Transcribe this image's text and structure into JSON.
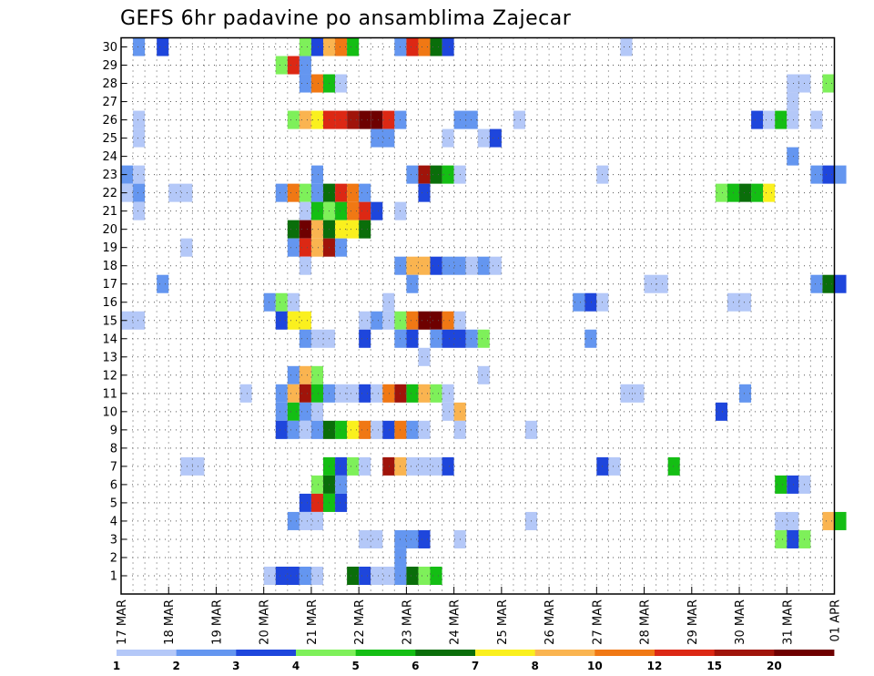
{
  "chart_data": {
    "type": "heatmap",
    "title": "GEFS 6hr padavine po ansamblima Zajecar",
    "y_categories": [
      "1",
      "2",
      "3",
      "4",
      "5",
      "6",
      "7",
      "8",
      "9",
      "10",
      "11",
      "12",
      "13",
      "14",
      "15",
      "16",
      "17",
      "18",
      "19",
      "20",
      "21",
      "22",
      "23",
      "24",
      "25",
      "26",
      "27",
      "28",
      "29",
      "30"
    ],
    "y_range": [
      0,
      30
    ],
    "x_tick_labels": [
      "17 MAR",
      "18 MAR",
      "19 MAR",
      "20 MAR",
      "21 MAR",
      "22 MAR",
      "23 MAR",
      "24 MAR",
      "25 MAR",
      "26 MAR",
      "27 MAR",
      "28 MAR",
      "29 MAR",
      "30 MAR",
      "31 MAR",
      "01 APR"
    ],
    "x_steps_per_day": 4,
    "x_step_count": 60,
    "grid": true,
    "colorbar": {
      "tick_labels": [
        "1",
        "2",
        "3",
        "4",
        "5",
        "6",
        "7",
        "8",
        "10",
        "12",
        "15",
        "20"
      ],
      "colors": [
        "#b4c8f8",
        "#6496f0",
        "#1e46dc",
        "#7ef05a",
        "#14be14",
        "#0a6e0a",
        "#faf01e",
        "#fab450",
        "#f07814",
        "#dc2814",
        "#a0140a",
        "#6e0000"
      ]
    },
    "cells": [
      [
        30,
        1,
        2,
        1
      ],
      [
        30,
        3,
        3,
        1
      ],
      [
        30,
        15,
        4,
        1
      ],
      [
        30,
        16,
        3,
        1
      ],
      [
        30,
        17,
        8,
        1
      ],
      [
        30,
        18,
        9,
        1
      ],
      [
        30,
        19,
        5,
        1
      ],
      [
        30,
        23,
        2,
        1
      ],
      [
        30,
        24,
        10,
        1
      ],
      [
        30,
        25,
        9,
        1
      ],
      [
        30,
        26,
        6,
        1
      ],
      [
        30,
        27,
        3,
        1
      ],
      [
        30,
        42,
        1,
        1
      ],
      [
        29,
        13,
        4,
        1
      ],
      [
        29,
        14,
        10,
        1
      ],
      [
        29,
        15,
        2,
        1
      ],
      [
        28,
        15,
        2,
        1
      ],
      [
        28,
        16,
        9,
        1
      ],
      [
        28,
        17,
        5,
        1
      ],
      [
        28,
        18,
        1,
        1
      ],
      [
        28,
        56,
        1,
        2
      ],
      [
        28,
        59,
        4,
        1
      ],
      [
        27,
        56,
        1,
        1
      ],
      [
        26,
        1,
        1,
        1
      ],
      [
        26,
        14,
        4,
        1
      ],
      [
        26,
        15,
        8,
        1
      ],
      [
        26,
        16,
        7,
        1
      ],
      [
        26,
        17,
        10,
        1
      ],
      [
        26,
        18,
        10,
        1
      ],
      [
        26,
        19,
        11,
        1
      ],
      [
        26,
        20,
        12,
        1
      ],
      [
        26,
        21,
        12,
        1
      ],
      [
        26,
        22,
        10,
        1
      ],
      [
        26,
        23,
        2,
        1
      ],
      [
        26,
        28,
        2,
        2
      ],
      [
        26,
        33,
        1,
        1
      ],
      [
        26,
        53,
        3,
        1
      ],
      [
        26,
        54,
        1,
        1
      ],
      [
        26,
        55,
        5,
        1
      ],
      [
        26,
        56,
        1,
        1
      ],
      [
        26,
        58,
        1,
        1
      ],
      [
        25,
        1,
        1,
        1
      ],
      [
        25,
        21,
        2,
        2
      ],
      [
        25,
        27,
        1,
        1
      ],
      [
        25,
        30,
        1,
        1
      ],
      [
        25,
        31,
        3,
        1
      ],
      [
        24,
        56,
        2,
        1
      ],
      [
        23,
        0,
        2,
        1
      ],
      [
        23,
        1,
        1,
        1
      ],
      [
        23,
        16,
        2,
        1
      ],
      [
        23,
        24,
        2,
        1
      ],
      [
        23,
        25,
        11,
        1
      ],
      [
        23,
        26,
        6,
        1
      ],
      [
        23,
        27,
        5,
        1
      ],
      [
        23,
        28,
        1,
        1
      ],
      [
        23,
        40,
        1,
        1
      ],
      [
        23,
        58,
        2,
        1
      ],
      [
        23,
        59,
        3,
        1
      ],
      [
        23,
        60,
        2,
        1
      ],
      [
        22,
        0,
        1,
        1
      ],
      [
        22,
        1,
        2,
        1
      ],
      [
        22,
        4,
        1,
        2
      ],
      [
        22,
        13,
        2,
        1
      ],
      [
        22,
        14,
        9,
        1
      ],
      [
        22,
        15,
        4,
        1
      ],
      [
        22,
        16,
        2,
        1
      ],
      [
        22,
        17,
        6,
        1
      ],
      [
        22,
        18,
        10,
        1
      ],
      [
        22,
        19,
        9,
        1
      ],
      [
        22,
        20,
        2,
        1
      ],
      [
        22,
        25,
        3,
        1
      ],
      [
        22,
        50,
        4,
        1
      ],
      [
        22,
        51,
        5,
        1
      ],
      [
        22,
        52,
        6,
        1
      ],
      [
        22,
        53,
        5,
        1
      ],
      [
        22,
        54,
        7,
        1
      ],
      [
        21,
        1,
        1,
        1
      ],
      [
        21,
        15,
        1,
        1
      ],
      [
        21,
        16,
        5,
        1
      ],
      [
        21,
        17,
        4,
        1
      ],
      [
        21,
        18,
        5,
        1
      ],
      [
        21,
        19,
        9,
        1
      ],
      [
        21,
        20,
        10,
        1
      ],
      [
        21,
        21,
        3,
        1
      ],
      [
        21,
        23,
        1,
        1
      ],
      [
        20,
        14,
        6,
        1
      ],
      [
        20,
        15,
        12,
        1
      ],
      [
        20,
        16,
        8,
        1
      ],
      [
        20,
        17,
        6,
        1
      ],
      [
        20,
        18,
        7,
        2
      ],
      [
        20,
        20,
        6,
        1
      ],
      [
        19,
        5,
        1,
        1
      ],
      [
        19,
        14,
        2,
        1
      ],
      [
        19,
        15,
        10,
        1
      ],
      [
        19,
        16,
        8,
        1
      ],
      [
        19,
        17,
        11,
        1
      ],
      [
        19,
        18,
        2,
        1
      ],
      [
        18,
        15,
        1,
        1
      ],
      [
        18,
        23,
        2,
        1
      ],
      [
        18,
        24,
        8,
        2
      ],
      [
        18,
        26,
        3,
        1
      ],
      [
        18,
        27,
        2,
        2
      ],
      [
        18,
        29,
        1,
        1
      ],
      [
        18,
        30,
        2,
        1
      ],
      [
        18,
        31,
        1,
        1
      ],
      [
        17,
        3,
        2,
        1
      ],
      [
        17,
        24,
        2,
        1
      ],
      [
        17,
        44,
        1,
        2
      ],
      [
        17,
        58,
        2,
        1
      ],
      [
        17,
        59,
        6,
        1
      ],
      [
        17,
        60,
        3,
        1
      ],
      [
        16,
        12,
        2,
        1
      ],
      [
        16,
        13,
        4,
        1
      ],
      [
        16,
        14,
        1,
        1
      ],
      [
        16,
        22,
        1,
        1
      ],
      [
        16,
        38,
        2,
        1
      ],
      [
        16,
        39,
        3,
        1
      ],
      [
        16,
        40,
        1,
        1
      ],
      [
        16,
        51,
        1,
        2
      ],
      [
        15,
        0,
        1,
        2
      ],
      [
        15,
        13,
        3,
        1
      ],
      [
        15,
        14,
        7,
        2
      ],
      [
        15,
        20,
        1,
        1
      ],
      [
        15,
        21,
        2,
        1
      ],
      [
        15,
        22,
        1,
        1
      ],
      [
        15,
        23,
        4,
        1
      ],
      [
        15,
        24,
        9,
        1
      ],
      [
        15,
        25,
        12,
        1
      ],
      [
        15,
        26,
        12,
        1
      ],
      [
        15,
        27,
        9,
        1
      ],
      [
        15,
        28,
        1,
        1
      ],
      [
        14,
        15,
        2,
        1
      ],
      [
        14,
        16,
        1,
        2
      ],
      [
        14,
        20,
        3,
        1
      ],
      [
        14,
        23,
        2,
        1
      ],
      [
        14,
        24,
        3,
        1
      ],
      [
        14,
        26,
        2,
        1
      ],
      [
        14,
        27,
        3,
        2
      ],
      [
        14,
        29,
        2,
        1
      ],
      [
        14,
        30,
        4,
        1
      ],
      [
        14,
        39,
        2,
        1
      ],
      [
        13,
        25,
        1,
        1
      ],
      [
        12,
        14,
        2,
        1
      ],
      [
        12,
        15,
        8,
        1
      ],
      [
        12,
        16,
        4,
        1
      ],
      [
        12,
        30,
        1,
        1
      ],
      [
        11,
        10,
        1,
        1
      ],
      [
        11,
        13,
        2,
        1
      ],
      [
        11,
        14,
        8,
        1
      ],
      [
        11,
        15,
        11,
        1
      ],
      [
        11,
        16,
        5,
        1
      ],
      [
        11,
        17,
        2,
        1
      ],
      [
        11,
        18,
        1,
        2
      ],
      [
        11,
        20,
        3,
        1
      ],
      [
        11,
        21,
        1,
        1
      ],
      [
        11,
        22,
        9,
        1
      ],
      [
        11,
        23,
        11,
        1
      ],
      [
        11,
        24,
        5,
        1
      ],
      [
        11,
        25,
        8,
        1
      ],
      [
        11,
        26,
        4,
        1
      ],
      [
        11,
        27,
        1,
        1
      ],
      [
        11,
        42,
        1,
        2
      ],
      [
        11,
        52,
        2,
        1
      ],
      [
        10,
        13,
        2,
        1
      ],
      [
        10,
        14,
        5,
        1
      ],
      [
        10,
        15,
        2,
        1
      ],
      [
        10,
        16,
        1,
        1
      ],
      [
        10,
        27,
        1,
        1
      ],
      [
        10,
        28,
        8,
        1
      ],
      [
        10,
        50,
        3,
        1
      ],
      [
        9,
        13,
        3,
        1
      ],
      [
        9,
        14,
        2,
        1
      ],
      [
        9,
        15,
        1,
        1
      ],
      [
        9,
        16,
        2,
        1
      ],
      [
        9,
        17,
        6,
        1
      ],
      [
        9,
        18,
        5,
        1
      ],
      [
        9,
        19,
        7,
        1
      ],
      [
        9,
        20,
        9,
        1
      ],
      [
        9,
        21,
        1,
        1
      ],
      [
        9,
        22,
        3,
        1
      ],
      [
        9,
        23,
        9,
        1
      ],
      [
        9,
        24,
        2,
        1
      ],
      [
        9,
        25,
        1,
        1
      ],
      [
        9,
        28,
        1,
        1
      ],
      [
        9,
        34,
        1,
        1
      ],
      [
        7,
        5,
        1,
        2
      ],
      [
        7,
        17,
        5,
        1
      ],
      [
        7,
        18,
        3,
        1
      ],
      [
        7,
        19,
        4,
        1
      ],
      [
        7,
        20,
        1,
        1
      ],
      [
        7,
        22,
        11,
        1
      ],
      [
        7,
        23,
        8,
        1
      ],
      [
        7,
        24,
        1,
        3
      ],
      [
        7,
        27,
        3,
        1
      ],
      [
        7,
        40,
        3,
        1
      ],
      [
        7,
        41,
        1,
        1
      ],
      [
        7,
        46,
        5,
        1
      ],
      [
        6,
        16,
        4,
        1
      ],
      [
        6,
        17,
        6,
        1
      ],
      [
        6,
        18,
        2,
        1
      ],
      [
        5,
        15,
        3,
        1
      ],
      [
        5,
        16,
        10,
        1
      ],
      [
        5,
        17,
        5,
        1
      ],
      [
        5,
        18,
        3,
        1
      ],
      [
        4,
        14,
        2,
        1
      ],
      [
        4,
        15,
        1,
        2
      ],
      [
        4,
        34,
        1,
        1
      ],
      [
        4,
        55,
        1,
        2
      ],
      [
        4,
        59,
        8,
        1
      ],
      [
        4,
        60,
        5,
        1
      ],
      [
        3,
        20,
        1,
        2
      ],
      [
        3,
        23,
        2,
        2
      ],
      [
        3,
        25,
        3,
        1
      ],
      [
        3,
        28,
        1,
        1
      ],
      [
        3,
        55,
        4,
        1
      ],
      [
        3,
        56,
        3,
        1
      ],
      [
        3,
        57,
        4,
        1
      ],
      [
        2,
        23,
        2,
        1
      ],
      [
        1,
        12,
        1,
        1
      ],
      [
        1,
        13,
        3,
        2
      ],
      [
        1,
        15,
        2,
        1
      ],
      [
        1,
        16,
        1,
        1
      ],
      [
        1,
        19,
        6,
        1
      ],
      [
        1,
        20,
        3,
        1
      ],
      [
        1,
        21,
        1,
        1
      ],
      [
        1,
        22,
        1,
        1
      ],
      [
        1,
        23,
        2,
        1
      ],
      [
        1,
        24,
        6,
        1
      ],
      [
        1,
        25,
        4,
        1
      ],
      [
        1,
        26,
        5,
        1
      ],
      [
        6,
        55,
        5,
        1
      ],
      [
        6,
        56,
        3,
        1
      ],
      [
        6,
        57,
        1,
        1
      ]
    ]
  }
}
